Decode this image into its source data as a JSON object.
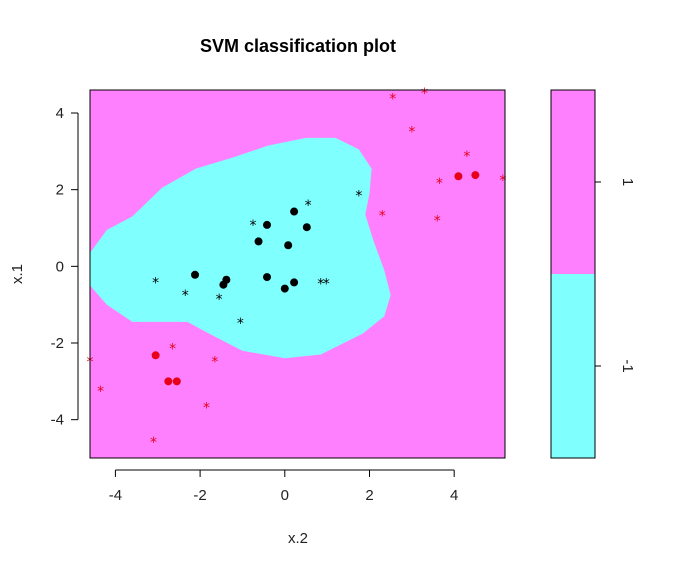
{
  "chart_data": {
    "type": "scatter",
    "title": "SVM classification plot",
    "xlabel": "x.2",
    "ylabel": "x.1",
    "xlim": [
      -4.6,
      5.2
    ],
    "ylim": [
      -5.0,
      4.6
    ],
    "x_ticks": [
      -4,
      -2,
      0,
      2,
      4
    ],
    "y_ticks": [
      -4,
      -2,
      0,
      2,
      4
    ],
    "legend_levels": [
      "1",
      "-1"
    ],
    "colors": {
      "region_positive": "#ff80ff",
      "region_negative": "#80ffff",
      "class_positive": "#e8001a",
      "class_negative": "#000000"
    },
    "decision_region_negative": [
      [
        -4.6,
        0.35
      ],
      [
        -4.2,
        0.95
      ],
      [
        -3.6,
        1.3
      ],
      [
        -2.9,
        2.05
      ],
      [
        -2.1,
        2.55
      ],
      [
        -1.2,
        2.85
      ],
      [
        -0.4,
        3.15
      ],
      [
        0.5,
        3.35
      ],
      [
        1.2,
        3.35
      ],
      [
        1.75,
        3.05
      ],
      [
        2.05,
        2.55
      ],
      [
        2.0,
        1.9
      ],
      [
        1.9,
        1.35
      ],
      [
        2.1,
        0.65
      ],
      [
        2.35,
        -0.1
      ],
      [
        2.5,
        -0.75
      ],
      [
        2.35,
        -1.3
      ],
      [
        1.85,
        -1.75
      ],
      [
        0.85,
        -2.3
      ],
      [
        0.0,
        -2.4
      ],
      [
        -1.0,
        -2.2
      ],
      [
        -1.8,
        -1.75
      ],
      [
        -2.3,
        -1.45
      ],
      [
        -3.6,
        -1.45
      ],
      [
        -4.2,
        -1.0
      ],
      [
        -4.6,
        -0.5
      ]
    ],
    "series": [
      {
        "class": "1",
        "color": "#e8001a",
        "support_vectors": [
          [
            -3.05,
            -2.32
          ],
          [
            -2.75,
            -3.0
          ],
          [
            -2.55,
            -3.0
          ],
          [
            4.1,
            2.35
          ],
          [
            4.5,
            2.38
          ]
        ],
        "other_points": [
          [
            2.55,
            4.4
          ],
          [
            3.3,
            4.55
          ],
          [
            3.0,
            3.55
          ],
          [
            4.3,
            2.9
          ],
          [
            3.65,
            2.2
          ],
          [
            5.15,
            2.28
          ],
          [
            2.3,
            1.35
          ],
          [
            3.6,
            1.22
          ],
          [
            -2.65,
            -2.12
          ],
          [
            -1.65,
            -2.45
          ],
          [
            -4.35,
            -3.22
          ],
          [
            -1.85,
            -3.65
          ],
          [
            -3.1,
            -4.55
          ],
          [
            -4.6,
            -2.45
          ]
        ]
      },
      {
        "class": "-1",
        "color": "#000000",
        "support_vectors": [
          [
            0.22,
            1.43
          ],
          [
            0.52,
            1.02
          ],
          [
            -0.42,
            1.08
          ],
          [
            -0.62,
            0.65
          ],
          [
            0.08,
            0.55
          ],
          [
            -2.12,
            -0.22
          ],
          [
            -1.38,
            -0.35
          ],
          [
            -1.45,
            -0.48
          ],
          [
            -0.42,
            -0.28
          ],
          [
            0.22,
            -0.42
          ],
          [
            0.0,
            -0.58
          ]
        ],
        "other_points": [
          [
            0.55,
            1.62
          ],
          [
            -0.75,
            1.1
          ],
          [
            1.75,
            1.88
          ],
          [
            -3.05,
            -0.4
          ],
          [
            -2.35,
            -0.72
          ],
          [
            -1.55,
            -0.82
          ],
          [
            -1.05,
            -1.45
          ],
          [
            0.85,
            -0.42
          ],
          [
            0.98,
            -0.42
          ]
        ]
      }
    ]
  }
}
